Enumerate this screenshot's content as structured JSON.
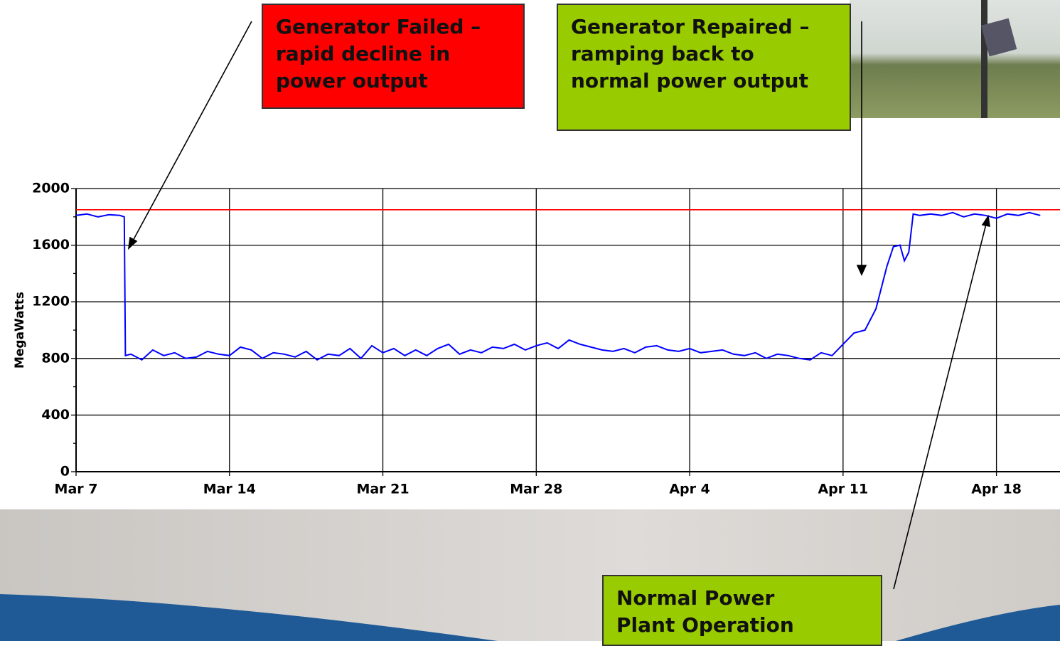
{
  "chart_data": {
    "type": "line",
    "ylabel": "MegaWatts",
    "x": [
      0,
      0.5,
      1,
      1.5,
      2,
      2.2,
      2.25,
      2.5,
      3,
      3.5,
      4,
      4.5,
      5,
      5.5,
      6,
      6.5,
      7,
      7.5,
      8,
      8.5,
      9,
      9.5,
      10,
      10.5,
      11,
      11.5,
      12,
      12.5,
      13,
      13.5,
      14,
      14.5,
      15,
      15.5,
      16,
      16.5,
      17,
      17.5,
      18,
      18.5,
      19,
      19.5,
      20,
      20.5,
      21,
      21.5,
      22,
      22.5,
      23,
      23.5,
      24,
      24.5,
      25,
      25.5,
      26,
      26.5,
      27,
      27.5,
      28,
      28.5,
      29,
      29.5,
      30,
      30.5,
      31,
      31.5,
      32,
      32.5,
      33,
      33.5,
      34,
      34.5,
      35,
      35.5,
      36,
      36.5,
      37,
      37.3,
      37.6,
      37.8,
      38,
      38.2,
      38.5,
      39,
      39.5,
      40,
      40.5,
      41,
      41.5,
      42,
      42.5,
      43,
      43.5,
      44
    ],
    "series": [
      {
        "color": "#0000ff",
        "values": [
          1810,
          1820,
          1800,
          1815,
          1810,
          1800,
          820,
          830,
          790,
          860,
          820,
          840,
          800,
          810,
          850,
          830,
          820,
          880,
          860,
          800,
          840,
          830,
          810,
          850,
          790,
          830,
          820,
          870,
          800,
          890,
          840,
          870,
          820,
          860,
          820,
          870,
          900,
          830,
          860,
          840,
          880,
          870,
          900,
          860,
          890,
          910,
          870,
          930,
          900,
          880,
          860,
          850,
          870,
          840,
          880,
          890,
          860,
          850,
          870,
          840,
          850,
          860,
          830,
          820,
          840,
          800,
          830,
          820,
          800,
          790,
          840,
          820,
          900,
          980,
          1000,
          1150,
          1450,
          1590,
          1600,
          1490,
          1550,
          1820,
          1810,
          1820,
          1810,
          1830,
          1800,
          1820,
          1810,
          1790,
          1820,
          1810,
          1830,
          1810
        ]
      }
    ],
    "reference_line": {
      "value": 1850,
      "color": "#ff0000"
    },
    "xlim": [
      0,
      44.9
    ],
    "xticks": [
      {
        "value": 0,
        "label": "Mar 7"
      },
      {
        "value": 7,
        "label": "Mar 14"
      },
      {
        "value": 14,
        "label": "Mar 21"
      },
      {
        "value": 21,
        "label": "Mar 28"
      },
      {
        "value": 28,
        "label": "Apr 4"
      },
      {
        "value": 35,
        "label": "Apr 11"
      },
      {
        "value": 42,
        "label": "Apr 18"
      }
    ],
    "ylim": [
      0,
      2000
    ],
    "yticks": [
      0,
      400,
      800,
      1200,
      1600,
      2000
    ],
    "yticks_minor": [
      200,
      600,
      1000,
      1400,
      1800
    ],
    "grid": true,
    "annotations": [
      {
        "text": "Generator Failed – rapid decline in power output",
        "color": "#ff0000"
      },
      {
        "text": "Generator Repaired – ramping back to normal power output",
        "color": "#99cc00"
      },
      {
        "text": "Normal Power Plant Operation",
        "color": "#99cc00"
      }
    ]
  }
}
